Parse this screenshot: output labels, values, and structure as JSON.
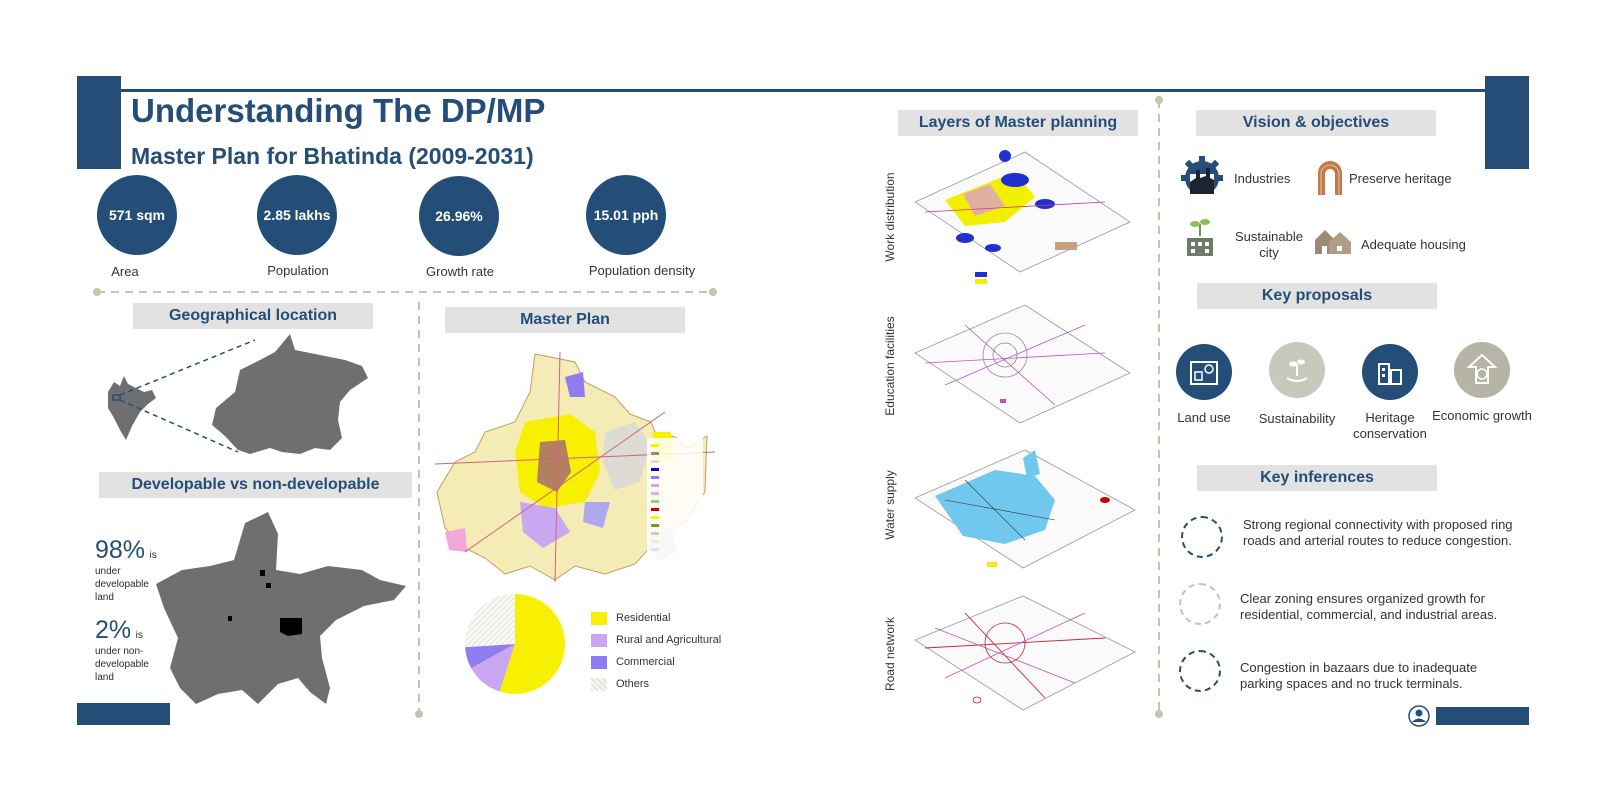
{
  "header": {
    "title": "Understanding The DP/MP",
    "subtitle": "Master Plan for Bhatinda (2009-2031)"
  },
  "stats": [
    {
      "value": "571 sqm",
      "label": "Area"
    },
    {
      "value": "2.85 lakhs",
      "label": "Population"
    },
    {
      "value": "26.96%",
      "label": "Growth rate"
    },
    {
      "value": "15.01 pph",
      "label": "Population density"
    }
  ],
  "geo": {
    "heading": "Geographical location"
  },
  "developable": {
    "heading": "Developable vs non-developable",
    "items": [
      {
        "percent": "98%",
        "suffix": "is",
        "desc": "under developable land"
      },
      {
        "percent": "2%",
        "suffix": "is",
        "desc": "under non-developable land"
      }
    ]
  },
  "master_plan": {
    "heading": "Master Plan",
    "legend": [
      {
        "label": "Residential",
        "color": "#f7f000"
      },
      {
        "label": "Rural and Agricultural",
        "color": "#caa6f0"
      },
      {
        "label": "Commercial",
        "color": "#8f7cf0"
      },
      {
        "label": "Others",
        "color": "#eeeeea"
      }
    ],
    "shares": [
      {
        "label": "Residential",
        "value": 0.55
      },
      {
        "label": "Rural and Agricultural",
        "value": 0.12
      },
      {
        "label": "Commercial",
        "value": 0.07
      },
      {
        "label": "Others",
        "value": 0.26
      }
    ]
  },
  "layers": {
    "heading": "Layers of Master planning",
    "items": [
      "Work distribution",
      "Education facilities",
      "Water supply",
      "Road network"
    ]
  },
  "vision": {
    "heading": "Vision & objectives",
    "items": [
      {
        "label": "Industries",
        "icon": "factory-gear-icon"
      },
      {
        "label": "Preserve heritage",
        "icon": "arch-icon"
      },
      {
        "label": "Sustainable city",
        "icon": "green-building-icon"
      },
      {
        "label": "Adequate housing",
        "icon": "houses-icon"
      }
    ]
  },
  "proposals": {
    "heading": "Key proposals",
    "items": [
      {
        "label": "Land use",
        "color": "#244e78"
      },
      {
        "label": "Sustainability",
        "color": "#c9c8bd"
      },
      {
        "label": "Heritage conservation",
        "color": "#244e78"
      },
      {
        "label": "Economic growth",
        "color": "#b5b4a6"
      }
    ]
  },
  "inferences": {
    "heading": "Key inferences",
    "items": [
      "Strong regional connectivity with proposed ring roads and arterial routes to reduce congestion.",
      "Clear zoning ensures organized growth for residential, commercial, and industrial areas.",
      "Congestion in bazaars due to inadequate parking spaces and no truck terminals."
    ]
  },
  "colors": {
    "navy": "#244e78",
    "grey_band": "#e2e2e2",
    "divider": "#c8c3ad"
  }
}
